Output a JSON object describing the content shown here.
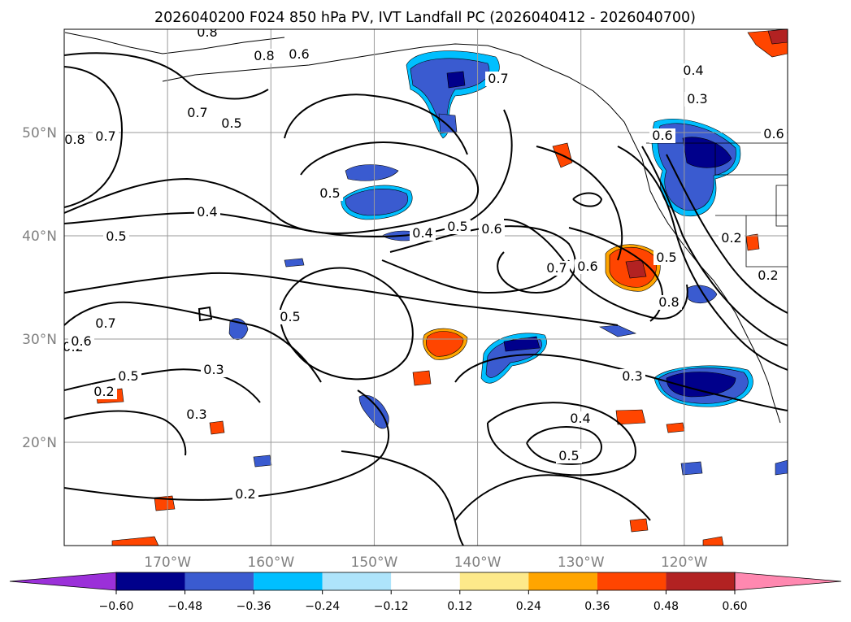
{
  "title": "2026040200 F024 850 hPa PV, IVT Landfall PC (2026040412 - 2026040700)",
  "map": {
    "lon_range": [
      -180,
      -110
    ],
    "lat_range": [
      10,
      60
    ],
    "lon_labels": [
      "170°W",
      "160°W",
      "150°W",
      "140°W",
      "130°W",
      "120°W"
    ],
    "lat_labels": [
      "50°N",
      "40°N",
      "30°N",
      "20°N"
    ],
    "contour_labels": [
      "0.8",
      "0.8",
      "0.6",
      "0.7",
      "0.7",
      "0.5",
      "0.8",
      "0.7",
      "0.5",
      "0.4",
      "0.5",
      "0.4",
      "0.5",
      "0.6",
      "0.7",
      "0.6",
      "0.8",
      "0.5",
      "0.3",
      "0.3",
      "0.5",
      "0.2",
      "0.2",
      "0.3",
      "0.4",
      "0.5",
      "0.2",
      "0.4",
      "0.3",
      "0.6",
      "0.2",
      "0.2",
      "0.7",
      "0.5",
      "0.6",
      "0.6"
    ]
  },
  "colorbar": {
    "ticks": [
      "−0.60",
      "−0.48",
      "−0.36",
      "−0.24",
      "−0.12",
      "0.12",
      "0.24",
      "0.36",
      "0.48",
      "0.60"
    ],
    "colors": [
      "#9b30d9",
      "#00008b",
      "#3a5bd0",
      "#00bfff",
      "#aee4fb",
      "#ffffff",
      "#fde98a",
      "#ffa500",
      "#ff4500",
      "#b22222",
      "#ff88b0"
    ]
  },
  "palette": {
    "neg_strong": "#00008b",
    "neg": "#3a5bd0",
    "neg_light": "#00bfff",
    "pos": "#ff4500",
    "pos_edge": "#ffa500",
    "pos_strong": "#b22222"
  }
}
